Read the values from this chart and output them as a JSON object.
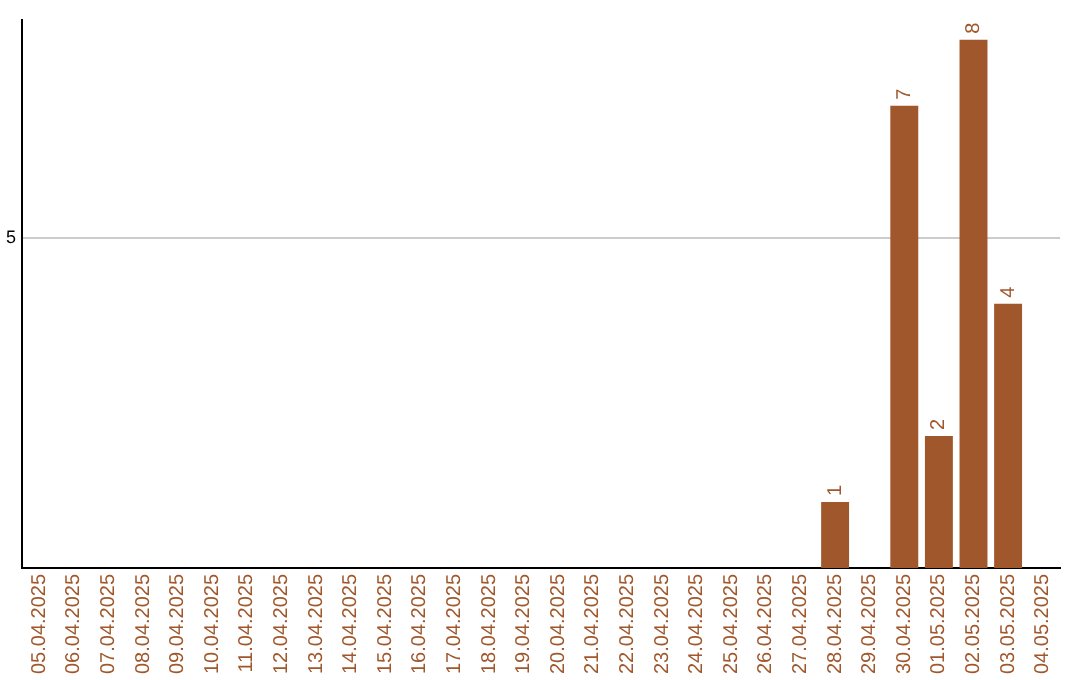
{
  "chart_data": {
    "type": "bar",
    "categories": [
      "05.04.2025",
      "06.04.2025",
      "07.04.2025",
      "08.04.2025",
      "09.04.2025",
      "10.04.2025",
      "11.04.2025",
      "12.04.2025",
      "13.04.2025",
      "14.04.2025",
      "15.04.2025",
      "16.04.2025",
      "17.04.2025",
      "18.04.2025",
      "19.04.2025",
      "20.04.2025",
      "21.04.2025",
      "22.04.2025",
      "23.04.2025",
      "24.04.2025",
      "25.04.2025",
      "26.04.2025",
      "27.04.2025",
      "28.04.2025",
      "29.04.2025",
      "30.04.2025",
      "01.05.2025",
      "02.05.2025",
      "03.05.2025",
      "04.05.2025"
    ],
    "values": [
      null,
      null,
      null,
      null,
      null,
      null,
      null,
      null,
      null,
      null,
      null,
      null,
      null,
      null,
      null,
      null,
      null,
      null,
      null,
      null,
      null,
      null,
      null,
      1,
      null,
      7,
      2,
      8,
      4,
      null
    ],
    "color": "#a0572b",
    "ylim": [
      0,
      8.3
    ],
    "yticks": [
      5
    ],
    "grid": "y",
    "data_labels": true,
    "legend": false
  }
}
